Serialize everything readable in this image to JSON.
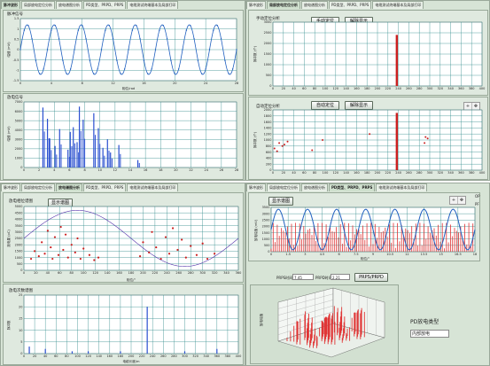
{
  "colors": {
    "window_bg": "#d7e4d6",
    "plot_bg": "#ffffff",
    "grid": "#2f8a8a",
    "wave": "#1f5fbf",
    "scatter": "#cc1f1f",
    "bars_blue": "#2a4fd0",
    "bars_red": "#e03333"
  },
  "top_left": {
    "tabs": [
      "脉冲波形",
      "局部放电定位分析",
      "放电谱图分析",
      "PD类型、PRPD、PRPS",
      "电缆测试终端基本及局部打印"
    ],
    "panel1_title": "脉冲信号",
    "panel2_title": "放电信号",
    "chart1": {
      "ylabel": "幅值 (mV)",
      "xlabel": "相位/rad"
    },
    "chart2": {
      "ylabel": "幅值 (mV)"
    }
  },
  "top_right": {
    "tabs": [
      "脉冲波形",
      "局部放电定位分析",
      "放电谱图分析",
      "PD类型、PRPD、PRPS",
      "电缆测试终端基本及局部打印"
    ],
    "manual_title": "手动定位分析",
    "manual_button": "手动定位",
    "hide_button": "解除显示",
    "auto_title": "自动定位分析",
    "auto_button": "自动定位",
    "hide_button2": "解除显示",
    "chart1": {
      "ylabel": "脉冲数 (个)"
    },
    "chart2": {
      "ylabel": "脉冲数 (个)"
    }
  },
  "bottom_left": {
    "tabs": [
      "脉冲波形",
      "局部放电定位分析",
      "放电谱图分析",
      "PD类型、PRPD、PRPS",
      "电缆测试终端基本及局部打印"
    ],
    "phase_title": "放电相位谱图",
    "show_button": "显示谱图",
    "qty_title": "放电次数谱图",
    "chart1": {
      "ylabel": "放电量 (pC)",
      "xlabel": "相位/°"
    },
    "chart2": {
      "ylabel": "脉冲数",
      "xlabel": "电缆长度/m"
    }
  },
  "bottom_right": {
    "tabs": [
      "脉冲波形",
      "局部放电定位分析",
      "放电谱图分析",
      "PD类型、PRPD、PRPS",
      "电缆测试终端基本及局部打印"
    ],
    "show_button": "显示谱图",
    "legend": [
      "OP",
      "PF"
    ],
    "chart_xlabel": "相位/°",
    "chart_ylabel": "放电幅值 (mV)",
    "field1_label": "PRPS时间",
    "field1_value": "7.45",
    "field2_label": "PRPD时间",
    "field2_value": "2.21",
    "prps_button": "PRPS/PRPD",
    "pd_type_title": "PD放电类型",
    "pd_type_value": "内部放电",
    "chart3d_ylabel": "放电幅值"
  },
  "icons": [
    "zoom-icon",
    "pan-icon",
    "cursor-icon"
  ],
  "chart_data": [
    {
      "name": "脉冲信号",
      "type": "line",
      "x": [
        0,
        4,
        8,
        12,
        16,
        20,
        24,
        28
      ],
      "xlim": [
        0,
        28
      ],
      "ylim": [
        -1.5,
        1.5
      ],
      "cycles": 8,
      "amplitude": 1.2
    },
    {
      "name": "放电信号",
      "type": "bar",
      "xlim": [
        0,
        28
      ],
      "ylim": [
        0,
        7000
      ],
      "x": [
        2.5,
        3.1,
        3.4,
        4.1,
        4.7,
        5.8,
        6.1,
        6.5,
        7.0,
        7.3,
        7.8,
        9.2,
        9.8,
        10.4,
        11.0,
        11.4,
        12.5,
        15.0
      ],
      "values": [
        6400,
        5200,
        3100,
        2300,
        4100,
        1900,
        3800,
        4300,
        2700,
        6500,
        5100,
        5800,
        4200,
        2100,
        3000,
        1600,
        2400,
        800
      ]
    },
    {
      "name": "手动定位分析",
      "type": "bar",
      "xlim": [
        0,
        400
      ],
      "ylim": [
        0,
        3000
      ],
      "x": [
        237
      ],
      "values": [
        2400
      ]
    },
    {
      "name": "自动定位分析",
      "type": "scatter",
      "xlim": [
        0,
        400
      ],
      "ylim": [
        0,
        2000
      ],
      "x": [
        3,
        8,
        12,
        18,
        22,
        28,
        75,
        95,
        185,
        237,
        237,
        237,
        237,
        237,
        290,
        292,
        296
      ],
      "y": [
        720,
        630,
        900,
        800,
        850,
        950,
        660,
        1000,
        1200,
        1600,
        1400,
        1200,
        1000,
        800,
        900,
        1100,
        1050
      ]
    },
    {
      "name": "放电相位谱图",
      "type": "scatter",
      "xlim": [
        0,
        360
      ],
      "ylim": [
        0,
        5000
      ],
      "x": [
        12,
        18,
        25,
        30,
        35,
        40,
        45,
        48,
        52,
        58,
        62,
        66,
        70,
        74,
        80,
        86,
        90,
        95,
        100,
        110,
        118,
        125,
        195,
        200,
        210,
        215,
        222,
        230,
        238,
        244,
        250,
        258,
        265,
        272,
        280,
        290,
        300,
        308,
        320
      ],
      "y": [
        900,
        1500,
        1100,
        2200,
        1300,
        3100,
        1800,
        900,
        2600,
        1200,
        3400,
        1600,
        2800,
        1000,
        2000,
        1400,
        2500,
        900,
        1700,
        1200,
        800,
        1000,
        1100,
        2200,
        1400,
        3000,
        1800,
        900,
        2600,
        1300,
        3300,
        1600,
        2400,
        1000,
        1900,
        1200,
        2100,
        900,
        1300
      ]
    },
    {
      "name": "放电次数谱图",
      "type": "bar",
      "xlim": [
        0,
        400
      ],
      "ylim": [
        0,
        25
      ],
      "x": [
        10,
        40,
        90,
        120,
        180,
        230,
        300,
        360
      ],
      "values": [
        3,
        2,
        1,
        1,
        1,
        20,
        1,
        2
      ]
    },
    {
      "name": "PRPS",
      "type": "bar",
      "xlim": [
        0,
        18
      ],
      "ylim": [
        0,
        3500
      ],
      "cycles": 7
    }
  ]
}
